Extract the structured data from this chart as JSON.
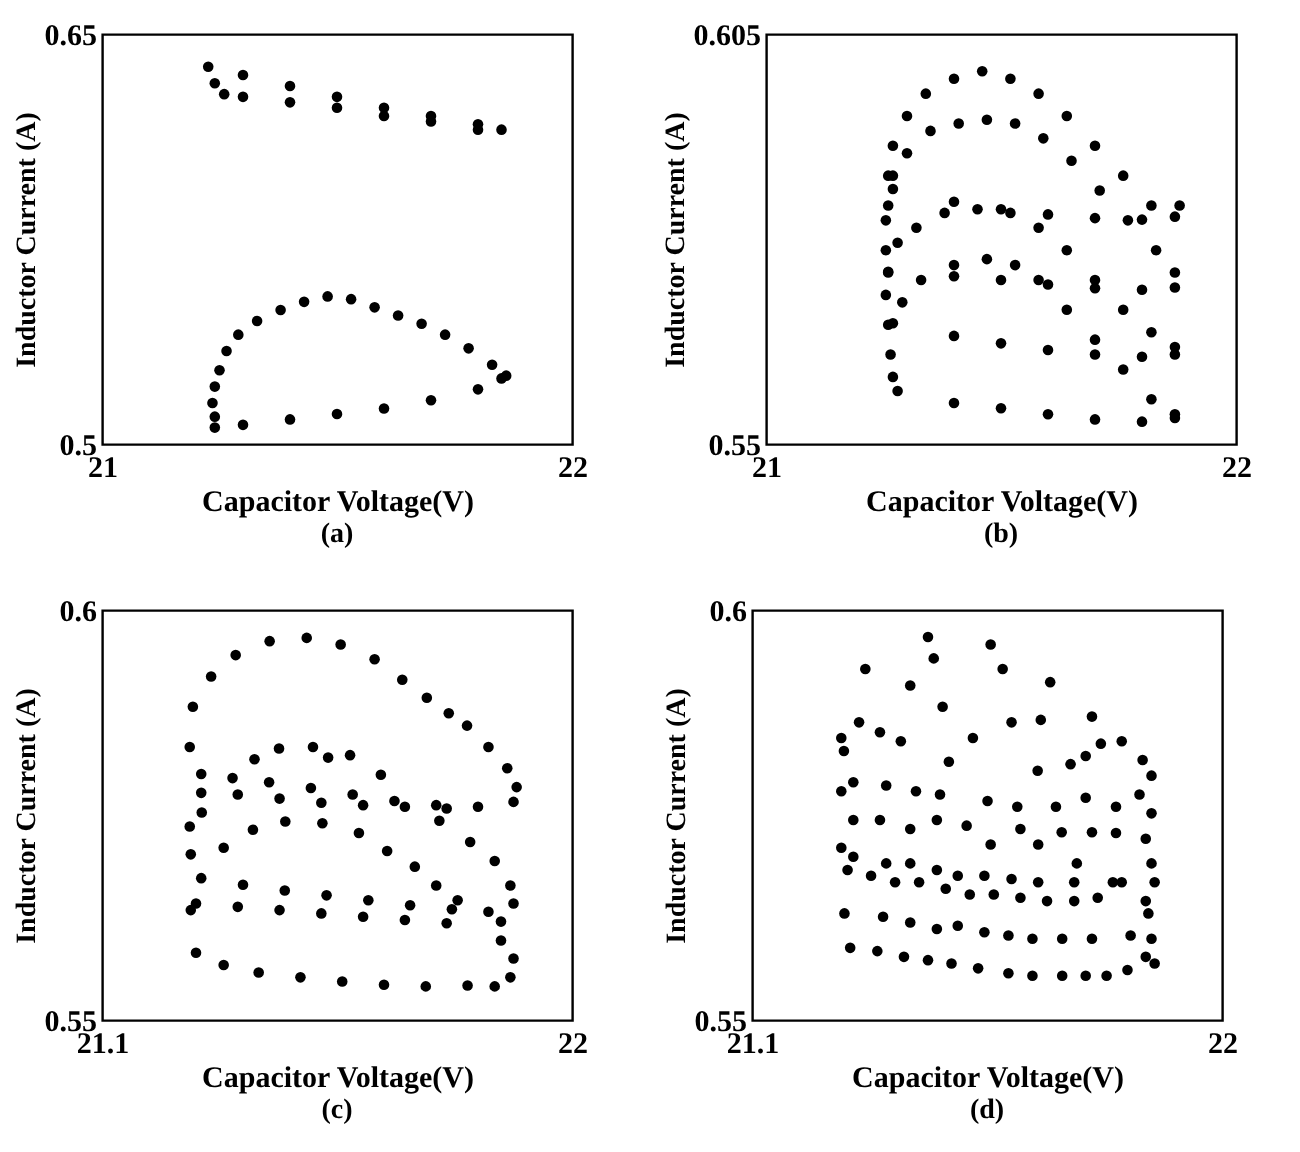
{
  "chart_data": [
    {
      "type": "scatter",
      "title": "(a)",
      "xlabel": "Capacitor Voltage(V)",
      "ylabel": "Inductor Current (A)",
      "xlim": [
        21,
        22
      ],
      "ylim": [
        0.5,
        0.65
      ],
      "xticks": [
        21,
        22
      ],
      "yticks": [
        0.5,
        0.65
      ],
      "marker": "circle",
      "series": [
        {
          "color": "#000000",
          "x": [
            21.226,
            21.3,
            21.4,
            21.5,
            21.6,
            21.7,
            21.8,
            21.85,
            21.24,
            21.26,
            21.3,
            21.4,
            21.5,
            21.6,
            21.7,
            21.8,
            21.24,
            21.3,
            21.4,
            21.5,
            21.6,
            21.7,
            21.8,
            21.85,
            21.24,
            21.235,
            21.24,
            21.25,
            21.265,
            21.29,
            21.33,
            21.38,
            21.43,
            21.48,
            21.53,
            21.58,
            21.63,
            21.68,
            21.73,
            21.78,
            21.83,
            21.86
          ],
          "values": [
            0.638,
            0.635,
            0.631,
            0.627,
            0.623,
            0.62,
            0.617,
            0.615,
            0.632,
            0.628,
            0.627,
            0.625,
            0.623,
            0.62,
            0.618,
            0.615,
            0.506,
            0.507,
            0.509,
            0.511,
            0.513,
            0.516,
            0.52,
            0.524,
            0.51,
            0.515,
            0.521,
            0.527,
            0.534,
            0.54,
            0.545,
            0.549,
            0.552,
            0.554,
            0.553,
            0.55,
            0.547,
            0.544,
            0.54,
            0.535,
            0.529,
            0.525
          ]
        }
      ]
    },
    {
      "type": "scatter",
      "title": "(b)",
      "xlabel": "Capacitor Voltage(V)",
      "ylabel": "Inductor Current (A)",
      "xlim": [
        21,
        22
      ],
      "ylim": [
        0.55,
        0.605
      ],
      "xticks": [
        21,
        22
      ],
      "yticks": [
        0.55,
        0.605
      ],
      "marker": "circle",
      "series": [
        {
          "color": "#000000",
          "x": [
            21.26,
            21.26,
            21.27,
            21.3,
            21.34,
            21.4,
            21.46,
            21.52,
            21.58,
            21.64,
            21.7,
            21.76,
            21.82,
            21.88,
            21.27,
            21.3,
            21.35,
            21.41,
            21.47,
            21.53,
            21.59,
            21.65,
            21.71,
            21.77,
            21.83,
            21.87,
            21.26,
            21.28,
            21.32,
            21.38,
            21.45,
            21.52,
            21.58,
            21.64,
            21.7,
            21.76,
            21.82,
            21.87,
            21.29,
            21.33,
            21.4,
            21.47,
            21.53,
            21.58,
            21.64,
            21.7,
            21.76,
            21.82,
            21.87,
            21.255,
            21.255,
            21.255,
            21.26,
            21.265,
            21.27,
            21.27,
            21.4,
            21.5,
            21.6,
            21.7,
            21.8,
            21.87,
            21.26,
            21.4,
            21.5,
            21.6,
            21.7,
            21.8,
            21.87,
            21.27,
            21.4,
            21.5,
            21.6,
            21.7,
            21.8,
            21.87,
            21.28,
            21.4,
            21.5,
            21.6,
            21.7,
            21.8,
            21.87
          ],
          "values": [
            0.582,
            0.586,
            0.59,
            0.594,
            0.597,
            0.599,
            0.6,
            0.599,
            0.597,
            0.594,
            0.59,
            0.586,
            0.582,
            0.582,
            0.586,
            0.589,
            0.592,
            0.593,
            0.5935,
            0.593,
            0.591,
            0.588,
            0.584,
            0.58,
            0.576,
            0.573,
            0.573,
            0.577,
            0.579,
            0.581,
            0.5815,
            0.581,
            0.579,
            0.576,
            0.572,
            0.568,
            0.565,
            0.563,
            0.569,
            0.572,
            0.574,
            0.5748,
            0.574,
            0.572,
            0.568,
            0.564,
            0.56,
            0.556,
            0.554,
            0.58,
            0.576,
            0.57,
            0.566,
            0.562,
            0.559,
            0.5842,
            0.5825,
            0.5815,
            0.5808,
            0.5803,
            0.5801,
            0.5805,
            0.5731,
            0.5725,
            0.572,
            0.5714,
            0.5709,
            0.5707,
            0.571,
            0.5662,
            0.5645,
            0.5635,
            0.5626,
            0.562,
            0.5617,
            0.562,
            0.5571,
            0.5555,
            0.5548,
            0.554,
            0.5533,
            0.553,
            0.5535
          ]
        }
      ]
    },
    {
      "type": "scatter",
      "title": "(c)",
      "xlabel": "Capacitor Voltage(V)",
      "ylabel": "Inductor Current (A)",
      "xlim": [
        21.1,
        22
      ],
      "ylim": [
        0.55,
        0.6
      ],
      "xticks": [
        21.1,
        22
      ],
      "yticks": [
        0.55,
        0.6
      ],
      "marker": "circle",
      "series": [
        {
          "color": "#000000",
          "x": [
            21.274,
            21.309,
            21.356,
            21.421,
            21.492,
            21.557,
            21.622,
            21.675,
            21.722,
            21.764,
            21.799,
            21.84,
            21.876,
            21.894,
            21.888,
            21.268,
            21.268,
            21.27,
            21.27,
            21.29,
            21.35,
            21.42,
            21.5,
            21.58,
            21.66,
            21.74,
            21.82,
            21.29,
            21.36,
            21.44,
            21.52,
            21.6,
            21.68,
            21.76,
            21.392,
            21.439,
            21.504,
            21.533,
            21.575,
            21.634,
            21.291,
            21.333,
            21.389,
            21.451,
            21.522,
            21.592,
            21.646,
            21.699,
            21.74,
            21.781,
            21.746,
            21.805,
            21.852,
            21.882,
            21.888,
            21.864,
            21.29,
            21.37,
            21.45,
            21.53,
            21.61,
            21.69,
            21.77,
            21.84,
            21.28,
            21.36,
            21.44,
            21.52,
            21.6,
            21.68,
            21.76,
            21.864,
            21.888,
            21.882,
            21.852,
            21.28,
            21.333,
            21.4,
            21.48,
            21.56,
            21.64,
            21.72,
            21.8
          ],
          "values": [
            0.5882,
            0.5919,
            0.5945,
            0.5962,
            0.5966,
            0.5958,
            0.594,
            0.5915,
            0.5893,
            0.5874,
            0.5859,
            0.5833,
            0.5807,
            0.5784,
            0.5766,
            0.5833,
            0.5736,
            0.5702,
            0.5634,
            0.58,
            0.5795,
            0.579,
            0.5783,
            0.5775,
            0.5767,
            0.5762,
            0.576,
            0.5777,
            0.5775,
            0.577,
            0.5765,
            0.5762,
            0.576,
            0.5758,
            0.5818,
            0.5831,
            0.5833,
            0.582,
            0.5823,
            0.5799,
            0.5753,
            0.571,
            0.5732,
            0.5742,
            0.574,
            0.5728,
            0.5706,
            0.5687,
            0.5664,
            0.5646,
            0.5743,
            0.5717,
            0.5694,
            0.5664,
            0.5642,
            0.562,
            0.5673,
            0.5665,
            0.5658,
            0.5652,
            0.5646,
            0.564,
            0.5635,
            0.5632,
            0.5642,
            0.5638,
            0.5634,
            0.563,
            0.5626,
            0.5622,
            0.5618,
            0.5597,
            0.5575,
            0.5552,
            0.5541,
            0.5582,
            0.5567,
            0.5558,
            0.5552,
            0.5547,
            0.5543,
            0.5541,
            0.5542
          ]
        }
      ]
    },
    {
      "type": "scatter",
      "title": "(d)",
      "xlabel": "Capacitor Voltage(V)",
      "ylabel": "Inductor Current (A)",
      "xlim": [
        21.1,
        22
      ],
      "ylim": [
        0.55,
        0.6
      ],
      "xticks": [
        21.1,
        22
      ],
      "yticks": [
        0.55,
        0.6
      ],
      "marker": "circle",
      "series": [
        {
          "color": "#000000",
          "x": [
            21.437,
            21.557,
            21.317,
            21.448,
            21.403,
            21.58,
            21.671,
            21.465,
            21.305,
            21.345,
            21.385,
            21.523,
            21.597,
            21.653,
            21.751,
            21.768,
            21.808,
            21.271,
            21.276,
            21.477,
            21.647,
            21.71,
            21.739,
            21.848,
            21.865,
            21.271,
            21.294,
            21.357,
            21.414,
            21.46,
            21.551,
            21.608,
            21.682,
            21.739,
            21.797,
            21.842,
            21.865,
            21.294,
            21.345,
            21.403,
            21.454,
            21.511,
            21.557,
            21.614,
            21.648,
            21.693,
            21.751,
            21.797,
            21.854,
            21.271,
            21.294,
            21.357,
            21.403,
            21.454,
            21.494,
            21.545,
            21.597,
            21.648,
            21.722,
            21.717,
            21.791,
            21.865,
            21.871,
            21.283,
            21.328,
            21.374,
            21.42,
            21.471,
            21.517,
            21.563,
            21.614,
            21.665,
            21.717,
            21.762,
            21.808,
            21.854,
            21.277,
            21.351,
            21.403,
            21.454,
            21.494,
            21.545,
            21.591,
            21.637,
            21.694,
            21.751,
            21.825,
            21.859,
            21.865,
            21.288,
            21.34,
            21.391,
            21.437,
            21.482,
            21.533,
            21.591,
            21.637,
            21.694,
            21.739,
            21.779,
            21.819,
            21.854,
            21.871
          ],
          "values": [
            0.5967,
            0.5958,
            0.5928,
            0.5941,
            0.5908,
            0.5928,
            0.5912,
            0.5882,
            0.5863,
            0.5851,
            0.584,
            0.5844,
            0.5863,
            0.5866,
            0.587,
            0.5837,
            0.584,
            0.5844,
            0.5828,
            0.5815,
            0.5804,
            0.5812,
            0.5822,
            0.5817,
            0.5798,
            0.5779,
            0.579,
            0.5786,
            0.5779,
            0.5775,
            0.5767,
            0.576,
            0.576,
            0.5771,
            0.576,
            0.5775,
            0.5752,
            0.5744,
            0.5744,
            0.5733,
            0.5744,
            0.5737,
            0.5714,
            0.5733,
            0.5714,
            0.5729,
            0.5729,
            0.5728,
            0.5721,
            0.571,
            0.5699,
            0.5691,
            0.5691,
            0.5683,
            0.5676,
            0.5676,
            0.5672,
            0.5668,
            0.5691,
            0.5668,
            0.5668,
            0.5691,
            0.5668,
            0.5683,
            0.5676,
            0.5668,
            0.5668,
            0.566,
            0.5653,
            0.5653,
            0.5649,
            0.5645,
            0.5645,
            0.5649,
            0.5668,
            0.5645,
            0.563,
            0.5626,
            0.5619,
            0.5611,
            0.5615,
            0.5607,
            0.5603,
            0.5599,
            0.5599,
            0.5599,
            0.5603,
            0.563,
            0.5599,
            0.5588,
            0.5584,
            0.5577,
            0.5573,
            0.5569,
            0.5563,
            0.5557,
            0.5554,
            0.5554,
            0.5554,
            0.5554,
            0.5561,
            0.5577,
            0.5569
          ]
        }
      ]
    }
  ]
}
